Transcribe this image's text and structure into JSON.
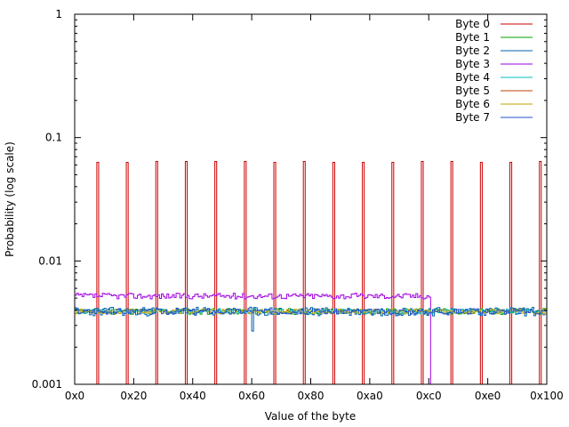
{
  "chart_data": {
    "type": "line",
    "subtype": "step",
    "title": "",
    "xlabel": "Value of the byte",
    "ylabel": "Probability (log scale)",
    "xlim": [
      0,
      256
    ],
    "ylim": [
      0.001,
      1
    ],
    "y_scale": "log",
    "grid": false,
    "legend_position": "top-right",
    "x_ticks": [
      {
        "value": 0,
        "label": "0x0"
      },
      {
        "value": 32,
        "label": "0x20"
      },
      {
        "value": 64,
        "label": "0x40"
      },
      {
        "value": 96,
        "label": "0x60"
      },
      {
        "value": 128,
        "label": "0x80"
      },
      {
        "value": 160,
        "label": "0xa0"
      },
      {
        "value": 192,
        "label": "0xc0"
      },
      {
        "value": 224,
        "label": "0xe0"
      },
      {
        "value": 256,
        "label": "0x100"
      }
    ],
    "y_ticks": [
      {
        "value": 0.001,
        "label": "0.001"
      },
      {
        "value": 0.01,
        "label": "0.01"
      },
      {
        "value": 0.1,
        "label": "0.1"
      },
      {
        "value": 1,
        "label": "1"
      }
    ],
    "series": [
      {
        "name": "Byte 0",
        "color": "#cc0000",
        "kind": "spikes",
        "spikes": [
          {
            "x": 12,
            "y": 0.063
          },
          {
            "x": 28,
            "y": 0.063
          },
          {
            "x": 44,
            "y": 0.064
          },
          {
            "x": 60,
            "y": 0.064
          },
          {
            "x": 76,
            "y": 0.064
          },
          {
            "x": 92,
            "y": 0.064
          },
          {
            "x": 108,
            "y": 0.063
          },
          {
            "x": 124,
            "y": 0.064
          },
          {
            "x": 140,
            "y": 0.063
          },
          {
            "x": 156,
            "y": 0.063
          },
          {
            "x": 172,
            "y": 0.063
          },
          {
            "x": 188,
            "y": 0.064
          },
          {
            "x": 204,
            "y": 0.064
          },
          {
            "x": 220,
            "y": 0.063
          },
          {
            "x": 236,
            "y": 0.063
          },
          {
            "x": 252,
            "y": 0.064
          }
        ],
        "baseline": 0.001
      },
      {
        "name": "Byte 1",
        "color": "#00a000",
        "kind": "noise",
        "level": 0.0039,
        "spread": 0.00022,
        "seed": 11
      },
      {
        "name": "Byte 2",
        "color": "#0060b0",
        "kind": "noise",
        "level": 0.0039,
        "spread": 0.00032,
        "seed": 23,
        "dips": [
          {
            "x": 96,
            "y": 0.0027
          }
        ]
      },
      {
        "name": "Byte 3",
        "color": "#a000e0",
        "kind": "noise",
        "level": 0.0052,
        "spread": 0.00028,
        "seed": 37,
        "x_end": 193,
        "drop_to": 0.001
      },
      {
        "name": "Byte 4",
        "color": "#00c0c0",
        "kind": "noise",
        "level": 0.0039,
        "spread": 0.00018,
        "seed": 41
      },
      {
        "name": "Byte 5",
        "color": "#c04000",
        "kind": "none"
      },
      {
        "name": "Byte 6",
        "color": "#c0a000",
        "kind": "noise",
        "level": 0.0039,
        "spread": 0.00018,
        "seed": 53
      },
      {
        "name": "Byte 7",
        "color": "#2050d0",
        "kind": "noise",
        "level": 0.0039,
        "spread": 0.0002,
        "seed": 67
      }
    ]
  }
}
